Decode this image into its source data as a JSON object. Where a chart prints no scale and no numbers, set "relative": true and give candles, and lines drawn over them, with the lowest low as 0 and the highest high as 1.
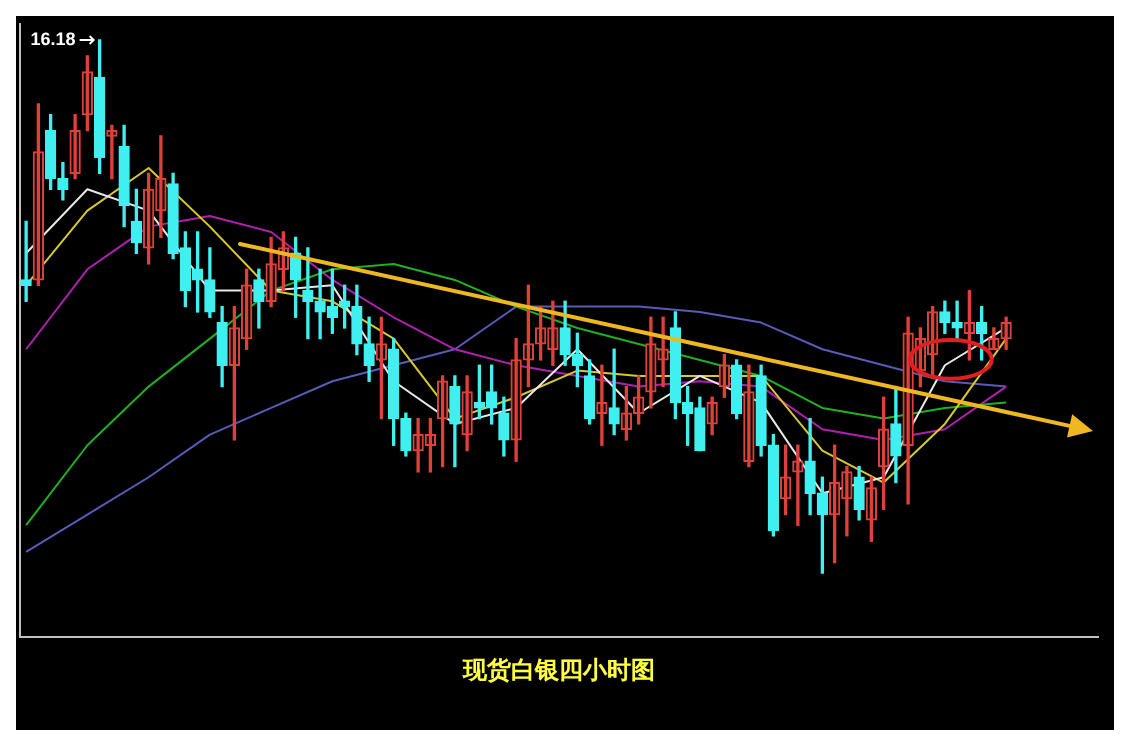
{
  "chart_data": {
    "type": "candlestick",
    "title": "现货白银四小时图",
    "relative": true,
    "legend": false,
    "categories": [
      null,
      null,
      null,
      null,
      null,
      null,
      null,
      null,
      null,
      null,
      null,
      null,
      null,
      null,
      null,
      null,
      null,
      null,
      null,
      null,
      null,
      null,
      null,
      null,
      null,
      null,
      null,
      null,
      null,
      null,
      null,
      null,
      null,
      null,
      null,
      null,
      null,
      null,
      null,
      null,
      null,
      null,
      null,
      null,
      null,
      null,
      null,
      null,
      null,
      null,
      null,
      null,
      null,
      null,
      null,
      null,
      null,
      null,
      null,
      null,
      null,
      null,
      null,
      null,
      null,
      null,
      null,
      null,
      null,
      null,
      null,
      null,
      null,
      null,
      null,
      null,
      null,
      null,
      null,
      null,
      null,
      null,
      null,
      null,
      null,
      null,
      null,
      null
    ],
    "ohlc": [
      [
        0.55,
        0.66,
        0.51,
        0.54
      ],
      [
        0.55,
        0.88,
        0.54,
        0.79
      ],
      [
        0.83,
        0.86,
        0.72,
        0.74
      ],
      [
        0.74,
        0.77,
        0.7,
        0.72
      ],
      [
        0.75,
        0.86,
        0.74,
        0.83
      ],
      [
        0.86,
        0.97,
        0.83,
        0.94
      ],
      [
        0.93,
        1.0,
        0.75,
        0.78
      ],
      [
        0.82,
        0.84,
        0.74,
        0.83
      ],
      [
        0.8,
        0.84,
        0.65,
        0.69
      ],
      [
        0.66,
        0.72,
        0.6,
        0.62
      ],
      [
        0.61,
        0.75,
        0.58,
        0.72
      ],
      [
        0.68,
        0.82,
        0.63,
        0.74
      ],
      [
        0.73,
        0.75,
        0.59,
        0.6
      ],
      [
        0.61,
        0.64,
        0.5,
        0.53
      ],
      [
        0.57,
        0.64,
        0.49,
        0.55
      ],
      [
        0.55,
        0.61,
        0.48,
        0.49
      ],
      [
        0.47,
        0.5,
        0.35,
        0.39
      ],
      [
        0.39,
        0.5,
        0.25,
        0.46
      ],
      [
        0.44,
        0.57,
        0.42,
        0.54
      ],
      [
        0.55,
        0.57,
        0.46,
        0.51
      ],
      [
        0.51,
        0.63,
        0.5,
        0.58
      ],
      [
        0.57,
        0.64,
        0.53,
        0.61
      ],
      [
        0.6,
        0.63,
        0.48,
        0.55
      ],
      [
        0.53,
        0.61,
        0.44,
        0.51
      ],
      [
        0.51,
        0.57,
        0.44,
        0.49
      ],
      [
        0.5,
        0.57,
        0.45,
        0.48
      ],
      [
        0.51,
        0.54,
        0.46,
        0.5
      ],
      [
        0.5,
        0.54,
        0.41,
        0.43
      ],
      [
        0.43,
        0.48,
        0.36,
        0.39
      ],
      [
        0.4,
        0.48,
        0.29,
        0.43
      ],
      [
        0.42,
        0.44,
        0.24,
        0.29
      ],
      [
        0.29,
        0.3,
        0.22,
        0.23
      ],
      [
        0.23,
        0.29,
        0.19,
        0.26
      ],
      [
        0.24,
        0.29,
        0.19,
        0.26
      ],
      [
        0.29,
        0.37,
        0.2,
        0.36
      ],
      [
        0.35,
        0.37,
        0.2,
        0.28
      ],
      [
        0.26,
        0.37,
        0.23,
        0.34
      ],
      [
        0.32,
        0.39,
        0.29,
        0.31
      ],
      [
        0.34,
        0.39,
        0.28,
        0.31
      ],
      [
        0.3,
        0.33,
        0.22,
        0.25
      ],
      [
        0.25,
        0.44,
        0.21,
        0.4
      ],
      [
        0.4,
        0.54,
        0.35,
        0.43
      ],
      [
        0.43,
        0.5,
        0.4,
        0.46
      ],
      [
        0.42,
        0.51,
        0.39,
        0.46
      ],
      [
        0.46,
        0.51,
        0.39,
        0.41
      ],
      [
        0.41,
        0.45,
        0.35,
        0.39
      ],
      [
        0.37,
        0.4,
        0.28,
        0.29
      ],
      [
        0.3,
        0.39,
        0.24,
        0.32
      ],
      [
        0.31,
        0.42,
        0.26,
        0.28
      ],
      [
        0.27,
        0.35,
        0.25,
        0.3
      ],
      [
        0.3,
        0.37,
        0.28,
        0.33
      ],
      [
        0.34,
        0.48,
        0.31,
        0.43
      ],
      [
        0.4,
        0.48,
        0.35,
        0.42
      ],
      [
        0.46,
        0.49,
        0.29,
        0.32
      ],
      [
        0.32,
        0.35,
        0.24,
        0.3
      ],
      [
        0.31,
        0.33,
        0.23,
        0.23
      ],
      [
        0.28,
        0.33,
        0.26,
        0.32
      ],
      [
        0.35,
        0.41,
        0.33,
        0.39
      ],
      [
        0.39,
        0.4,
        0.29,
        0.3
      ],
      [
        0.21,
        0.39,
        0.2,
        0.34
      ],
      [
        0.37,
        0.39,
        0.22,
        0.24
      ],
      [
        0.24,
        0.26,
        0.07,
        0.08
      ],
      [
        0.14,
        0.24,
        0.11,
        0.18
      ],
      [
        0.19,
        0.24,
        0.09,
        0.21
      ],
      [
        0.21,
        0.29,
        0.11,
        0.15
      ],
      [
        0.15,
        0.18,
        0.0,
        0.11
      ],
      [
        0.11,
        0.24,
        0.02,
        0.17
      ],
      [
        0.14,
        0.2,
        0.07,
        0.19
      ],
      [
        0.18,
        0.2,
        0.1,
        0.12
      ],
      [
        0.1,
        0.18,
        0.06,
        0.16
      ],
      [
        0.2,
        0.33,
        0.12,
        0.27
      ],
      [
        0.28,
        0.35,
        0.17,
        0.22
      ],
      [
        0.24,
        0.48,
        0.13,
        0.45
      ],
      [
        0.38,
        0.46,
        0.35,
        0.44
      ],
      [
        0.41,
        0.5,
        0.37,
        0.49
      ],
      [
        0.49,
        0.51,
        0.45,
        0.47
      ],
      [
        0.47,
        0.51,
        0.44,
        0.46
      ],
      [
        0.45,
        0.53,
        0.4,
        0.47
      ],
      [
        0.47,
        0.5,
        0.4,
        0.45
      ],
      [
        0.42,
        0.46,
        0.42,
        0.44
      ],
      [
        0.44,
        0.48,
        0.42,
        0.47
      ],
      null,
      null,
      null,
      null,
      null,
      null,
      null
    ],
    "series": [
      {
        "type": "line",
        "color": "#e8e8e8",
        "values": [
          0.6,
          null,
          null,
          null,
          null,
          0.72,
          null,
          null,
          null,
          null,
          0.68,
          null,
          null,
          null,
          null,
          0.53,
          null,
          null,
          null,
          null,
          0.53,
          null,
          null,
          null,
          null,
          0.54,
          null,
          null,
          null,
          null,
          0.36,
          null,
          null,
          null,
          null,
          0.28,
          null,
          null,
          null,
          null,
          0.31,
          null,
          null,
          null,
          null,
          0.42,
          null,
          null,
          null,
          null,
          0.3,
          null,
          null,
          null,
          null,
          0.37,
          null,
          null,
          null,
          null,
          0.32,
          null,
          null,
          null,
          null,
          0.15,
          null,
          null,
          null,
          null,
          0.18,
          null,
          null,
          null,
          null,
          0.39,
          null,
          null,
          null,
          null,
          0.46,
          null,
          null,
          null,
          null,
          null,
          null,
          null
        ]
      },
      {
        "type": "line",
        "color": "#d8c830",
        "values": [
          0.54,
          null,
          null,
          null,
          null,
          0.68,
          null,
          null,
          null,
          null,
          0.76,
          null,
          null,
          null,
          null,
          0.65,
          null,
          null,
          null,
          null,
          0.53,
          null,
          null,
          null,
          null,
          0.51,
          null,
          null,
          null,
          null,
          0.44,
          null,
          null,
          null,
          null,
          0.29,
          null,
          null,
          null,
          null,
          0.33,
          null,
          null,
          null,
          null,
          0.38,
          null,
          null,
          null,
          null,
          0.37,
          null,
          null,
          null,
          null,
          0.37,
          null,
          null,
          null,
          null,
          0.37,
          null,
          null,
          null,
          null,
          0.23,
          null,
          null,
          null,
          null,
          0.17,
          null,
          null,
          null,
          null,
          0.28,
          null,
          null,
          null,
          null,
          0.44,
          null,
          null,
          null,
          null,
          null,
          null,
          null
        ]
      },
      {
        "type": "line",
        "color": "#20b020",
        "values": [
          0.09,
          null,
          null,
          null,
          null,
          0.24,
          null,
          null,
          null,
          null,
          0.35,
          null,
          null,
          null,
          null,
          0.44,
          null,
          null,
          null,
          null,
          0.53,
          null,
          null,
          null,
          null,
          0.57,
          null,
          null,
          null,
          null,
          0.58,
          null,
          null,
          null,
          null,
          0.55,
          null,
          null,
          null,
          null,
          0.5,
          null,
          null,
          null,
          null,
          0.46,
          null,
          null,
          null,
          null,
          0.43,
          null,
          null,
          null,
          null,
          0.4,
          null,
          null,
          null,
          null,
          0.37,
          null,
          null,
          null,
          null,
          0.31,
          null,
          null,
          null,
          null,
          0.29,
          null,
          null,
          null,
          null,
          0.31,
          null,
          null,
          null,
          null,
          0.32,
          null,
          null,
          null,
          null,
          null,
          null,
          null
        ]
      },
      {
        "type": "line",
        "color": "#b020b0",
        "values": [
          0.42,
          null,
          null,
          null,
          null,
          0.57,
          null,
          null,
          null,
          null,
          0.65,
          null,
          null,
          null,
          null,
          0.67,
          null,
          null,
          null,
          null,
          0.64,
          null,
          null,
          null,
          null,
          0.55,
          null,
          null,
          null,
          null,
          0.48,
          null,
          null,
          null,
          null,
          0.42,
          null,
          null,
          null,
          null,
          0.39,
          null,
          null,
          null,
          null,
          0.37,
          null,
          null,
          null,
          null,
          0.35,
          null,
          null,
          null,
          null,
          0.36,
          null,
          null,
          null,
          null,
          0.35,
          null,
          null,
          null,
          null,
          0.27,
          null,
          null,
          null,
          null,
          0.25,
          null,
          null,
          null,
          null,
          0.27,
          null,
          null,
          null,
          null,
          0.35,
          null,
          null,
          null,
          null,
          null,
          null,
          null
        ]
      },
      {
        "type": "line",
        "color": "#5a5ab8",
        "values": [
          0.04,
          null,
          null,
          null,
          null,
          0.11,
          null,
          null,
          null,
          null,
          0.18,
          null,
          null,
          null,
          null,
          0.26,
          null,
          null,
          null,
          null,
          0.31,
          null,
          null,
          null,
          null,
          0.36,
          null,
          null,
          null,
          null,
          0.39,
          null,
          null,
          null,
          null,
          0.42,
          null,
          null,
          null,
          null,
          0.5,
          null,
          null,
          null,
          null,
          0.5,
          null,
          null,
          null,
          null,
          0.5,
          null,
          null,
          null,
          null,
          0.49,
          null,
          null,
          null,
          null,
          0.47,
          null,
          null,
          null,
          null,
          0.42,
          null,
          null,
          null,
          null,
          0.39,
          null,
          null,
          null,
          null,
          0.36,
          null,
          null,
          null,
          null,
          0.35,
          null,
          null,
          null,
          null,
          null,
          null,
          null
        ]
      }
    ],
    "annotations": [
      "16.18"
    ]
  }
}
